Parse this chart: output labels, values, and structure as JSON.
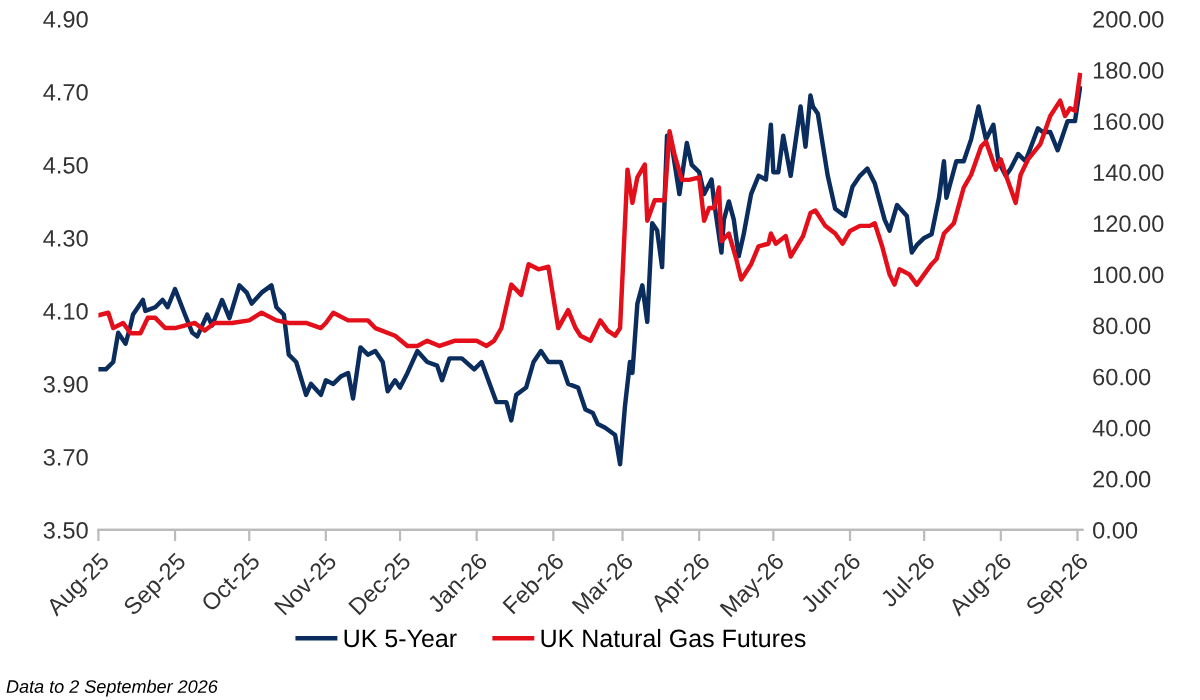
{
  "chart_data": {
    "type": "line",
    "x": [
      "2025-08-01",
      "2025-08-04",
      "2025-08-07",
      "2025-08-09",
      "2025-08-12",
      "2025-08-14",
      "2025-08-15",
      "2025-08-19",
      "2025-08-20",
      "2025-08-24",
      "2025-08-27",
      "2025-08-29",
      "2025-09-01",
      "2025-09-05",
      "2025-09-08",
      "2025-09-10",
      "2025-09-14",
      "2025-09-16",
      "2025-09-20",
      "2025-09-23",
      "2025-09-27",
      "2025-09-30",
      "2025-10-02",
      "2025-10-06",
      "2025-10-10",
      "2025-10-12",
      "2025-10-15",
      "2025-10-17",
      "2025-10-20",
      "2025-10-24",
      "2025-10-26",
      "2025-10-30",
      "2025-11-01",
      "2025-11-04",
      "2025-11-07",
      "2025-11-10",
      "2025-11-12",
      "2025-11-15",
      "2025-11-18",
      "2025-11-21",
      "2025-11-24",
      "2025-11-26",
      "2025-11-29",
      "2025-12-01",
      "2025-12-04",
      "2025-12-08",
      "2025-12-12",
      "2025-12-16",
      "2025-12-18",
      "2025-12-21",
      "2025-12-26",
      "2025-12-31",
      "2026-01-03",
      "2026-01-09",
      "2026-01-13",
      "2026-01-15",
      "2026-01-17",
      "2026-01-21",
      "2026-01-24",
      "2026-01-27",
      "2026-01-30",
      "2026-02-04",
      "2026-02-07",
      "2026-02-11",
      "2026-02-14",
      "2026-02-17",
      "2026-02-19",
      "2026-02-22",
      "2026-02-26",
      "2026-02-28",
      "2026-03-02",
      "2026-03-04",
      "2026-03-05",
      "2026-03-07",
      "2026-03-09",
      "2026-03-11",
      "2026-03-13",
      "2026-03-15",
      "2026-03-17",
      "2026-03-19",
      "2026-03-21",
      "2026-03-24",
      "2026-03-27",
      "2026-03-29",
      "2026-04-01",
      "2026-04-03",
      "2026-04-06",
      "2026-04-07",
      "2026-04-10",
      "2026-04-11",
      "2026-04-13",
      "2026-04-15",
      "2026-04-17",
      "2026-04-19",
      "2026-04-22",
      "2026-04-25",
      "2026-04-28",
      "2026-04-30",
      "2026-05-01",
      "2026-05-03",
      "2026-05-05",
      "2026-05-08",
      "2026-05-12",
      "2026-05-14",
      "2026-05-16",
      "2026-05-17",
      "2026-05-19",
      "2026-05-23",
      "2026-05-26",
      "2026-05-30",
      "2026-06-02",
      "2026-06-05",
      "2026-06-08",
      "2026-06-11",
      "2026-06-15",
      "2026-06-17",
      "2026-06-20",
      "2026-06-24",
      "2026-06-26",
      "2026-06-28",
      "2026-07-01",
      "2026-07-04",
      "2026-07-07",
      "2026-07-09",
      "2026-07-10",
      "2026-07-14",
      "2026-07-17",
      "2026-07-20",
      "2026-07-23",
      "2026-07-26",
      "2026-07-29",
      "2026-07-31",
      "2026-08-03",
      "2026-08-05",
      "2026-08-08",
      "2026-08-11",
      "2026-08-16",
      "2026-08-18",
      "2026-08-21",
      "2026-08-24",
      "2026-08-26",
      "2026-08-28",
      "2026-08-31",
      "2026-09-02"
    ],
    "series": [
      {
        "name": "UK 5-Year",
        "color": "#0b2d5e",
        "values": [
          3.94,
          3.94,
          3.96,
          4.04,
          4.01,
          4.06,
          4.09,
          4.13,
          4.1,
          4.11,
          4.13,
          4.11,
          4.16,
          4.09,
          4.04,
          4.03,
          4.09,
          4.06,
          4.13,
          4.08,
          4.17,
          4.15,
          4.12,
          4.15,
          4.17,
          4.11,
          4.09,
          3.98,
          3.96,
          3.87,
          3.9,
          3.87,
          3.91,
          3.9,
          3.92,
          3.93,
          3.86,
          4.0,
          3.98,
          3.99,
          3.96,
          3.88,
          3.91,
          3.89,
          3.93,
          3.99,
          3.96,
          3.95,
          3.91,
          3.97,
          3.97,
          3.94,
          3.96,
          3.85,
          3.85,
          3.8,
          3.87,
          3.89,
          3.96,
          3.99,
          3.96,
          3.96,
          3.9,
          3.89,
          3.83,
          3.82,
          3.79,
          3.78,
          3.76,
          3.68,
          3.84,
          3.96,
          3.93,
          4.12,
          4.17,
          4.07,
          4.34,
          4.32,
          4.22,
          4.58,
          4.55,
          4.42,
          4.56,
          4.5,
          4.48,
          4.42,
          4.46,
          4.4,
          4.26,
          4.35,
          4.4,
          4.35,
          4.25,
          4.31,
          4.42,
          4.47,
          4.46,
          4.61,
          4.48,
          4.48,
          4.58,
          4.47,
          4.66,
          4.55,
          4.69,
          4.66,
          4.64,
          4.47,
          4.38,
          4.36,
          4.44,
          4.47,
          4.49,
          4.45,
          4.35,
          4.32,
          4.39,
          4.36,
          4.26,
          4.28,
          4.3,
          4.31,
          4.41,
          4.51,
          4.41,
          4.51,
          4.51,
          4.57,
          4.66,
          4.57,
          4.61,
          4.51,
          4.47,
          4.49,
          4.53,
          4.51,
          4.6,
          4.59,
          4.59,
          4.54,
          4.58,
          4.62,
          4.62,
          4.71
        ]
      },
      {
        "name": "UK Natural Gas Futures",
        "color": "#e3101b",
        "axis": "y2",
        "x": [
          "2025-08-01",
          "2025-08-05",
          "2025-08-07",
          "2025-08-11",
          "2025-08-14",
          "2025-08-18",
          "2025-08-21",
          "2025-08-24",
          "2025-08-28",
          "2025-09-01",
          "2025-09-09",
          "2025-09-13",
          "2025-09-17",
          "2025-09-24",
          "2025-10-01",
          "2025-10-06",
          "2025-10-12",
          "2025-10-17",
          "2025-10-24",
          "2025-10-30",
          "2025-11-01",
          "2025-11-04",
          "2025-11-10",
          "2025-11-18",
          "2025-11-21",
          "2025-11-29",
          "2025-12-04",
          "2025-12-08",
          "2025-12-12",
          "2025-12-17",
          "2025-12-23",
          "2025-12-28",
          "2026-01-01",
          "2026-01-05",
          "2026-01-08",
          "2026-01-11",
          "2026-01-15",
          "2026-01-19",
          "2026-01-22",
          "2026-01-26",
          "2026-01-30",
          "2026-02-03",
          "2026-02-07",
          "2026-02-10",
          "2026-02-12",
          "2026-02-16",
          "2026-02-20",
          "2026-02-23",
          "2026-02-26",
          "2026-02-28",
          "2026-03-03",
          "2026-03-05",
          "2026-03-07",
          "2026-03-10",
          "2026-03-11",
          "2026-03-14",
          "2026-03-18",
          "2026-03-20",
          "2026-03-22",
          "2026-03-25",
          "2026-03-28",
          "2026-04-01",
          "2026-04-03",
          "2026-04-05",
          "2026-04-07",
          "2026-04-09",
          "2026-04-10",
          "2026-04-13",
          "2026-04-16",
          "2026-04-18",
          "2026-04-22",
          "2026-04-25",
          "2026-04-29",
          "2026-04-30",
          "2026-05-02",
          "2026-05-06",
          "2026-05-08",
          "2026-05-13",
          "2026-05-16",
          "2026-05-18",
          "2026-05-22",
          "2026-05-26",
          "2026-05-29",
          "2026-06-01",
          "2026-06-05",
          "2026-06-09",
          "2026-06-11",
          "2026-06-14",
          "2026-06-17",
          "2026-06-19",
          "2026-06-21",
          "2026-06-25",
          "2026-06-28",
          "2026-07-01",
          "2026-07-04",
          "2026-07-06",
          "2026-07-09",
          "2026-07-13",
          "2026-07-17",
          "2026-07-20",
          "2026-07-24",
          "2026-07-26",
          "2026-07-30",
          "2026-08-01",
          "2026-08-03",
          "2026-08-07",
          "2026-08-09",
          "2026-08-12",
          "2026-08-17",
          "2026-08-21",
          "2026-08-25",
          "2026-08-27",
          "2026-08-29",
          "2026-08-31",
          "2026-09-02"
        ],
        "values": [
          84,
          85,
          79,
          81,
          77,
          77,
          83,
          83,
          79,
          79,
          81,
          78,
          81,
          81,
          82,
          85,
          82,
          81,
          81,
          79,
          81,
          85,
          82,
          82,
          79,
          76,
          72,
          72,
          74,
          72,
          74,
          74,
          74,
          72,
          74,
          79,
          96,
          92,
          104,
          102,
          103,
          79,
          86,
          79,
          76,
          74,
          82,
          78,
          76,
          79,
          141,
          128,
          138,
          143,
          121,
          129,
          129,
          156,
          147,
          137,
          137,
          138,
          121,
          126,
          126,
          134,
          113,
          116,
          106,
          98,
          104,
          111,
          112,
          116,
          112,
          115,
          107,
          115,
          124,
          125,
          119,
          116,
          112,
          117,
          119,
          119,
          120,
          111,
          100,
          96,
          102,
          100,
          96,
          100,
          104,
          106,
          116,
          120,
          134,
          139,
          150,
          152,
          141,
          145,
          139,
          128,
          139,
          145,
          151,
          162,
          168,
          162,
          165,
          164,
          178
        ]
      }
    ],
    "xlim": [
      "2025-08-01",
      "2026-09-03"
    ],
    "xticks": [
      {
        "value": "2025-08-01",
        "label": "Aug-25"
      },
      {
        "value": "2025-09-01",
        "label": "Sep-25"
      },
      {
        "value": "2025-10-01",
        "label": "Oct-25"
      },
      {
        "value": "2025-11-01",
        "label": "Nov-25"
      },
      {
        "value": "2025-12-01",
        "label": "Dec-25"
      },
      {
        "value": "2026-01-01",
        "label": "Jan-26"
      },
      {
        "value": "2026-02-01",
        "label": "Feb-26"
      },
      {
        "value": "2026-03-01",
        "label": "Mar-26"
      },
      {
        "value": "2026-04-01",
        "label": "Apr-26"
      },
      {
        "value": "2026-05-01",
        "label": "May-26"
      },
      {
        "value": "2026-06-01",
        "label": "Jun-26"
      },
      {
        "value": "2026-07-01",
        "label": "Jul-26"
      },
      {
        "value": "2026-08-01",
        "label": "Aug-26"
      },
      {
        "value": "2026-09-01",
        "label": "Sep-26"
      }
    ],
    "ylim": [
      3.5,
      4.9
    ],
    "yticks": [
      {
        "value": 3.5,
        "label": "3.50"
      },
      {
        "value": 3.7,
        "label": "3.70"
      },
      {
        "value": 3.9,
        "label": "3.90"
      },
      {
        "value": 4.1,
        "label": "4.10"
      },
      {
        "value": 4.3,
        "label": "4.30"
      },
      {
        "value": 4.5,
        "label": "4.50"
      },
      {
        "value": 4.7,
        "label": "4.70"
      },
      {
        "value": 4.9,
        "label": "4.90"
      }
    ],
    "y2lim": [
      0,
      200
    ],
    "y2ticks": [
      {
        "value": 0,
        "label": "0.00"
      },
      {
        "value": 20,
        "label": "20.00"
      },
      {
        "value": 40,
        "label": "40.00"
      },
      {
        "value": 60,
        "label": "60.00"
      },
      {
        "value": 80,
        "label": "80.00"
      },
      {
        "value": 100,
        "label": "100.00"
      },
      {
        "value": 120,
        "label": "120.00"
      },
      {
        "value": 140,
        "label": "140.00"
      },
      {
        "value": 160,
        "label": "160.00"
      },
      {
        "value": 180,
        "label": "180.00"
      },
      {
        "value": 200,
        "label": "200.00"
      }
    ],
    "legend": "bottom",
    "grid": false,
    "annotations": [
      "Data to 2 September 2026"
    ]
  }
}
